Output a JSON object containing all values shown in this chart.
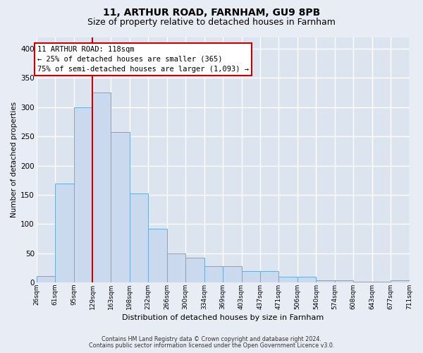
{
  "title": "11, ARTHUR ROAD, FARNHAM, GU9 8PB",
  "subtitle": "Size of property relative to detached houses in Farnham",
  "xlabel": "Distribution of detached houses by size in Farnham",
  "ylabel": "Number of detached properties",
  "bar_values": [
    11,
    170,
    300,
    325,
    258,
    153,
    92,
    50,
    43,
    28,
    28,
    20,
    20,
    10,
    10,
    4,
    4,
    2,
    2,
    4
  ],
  "bar_labels": [
    "26sqm",
    "61sqm",
    "95sqm",
    "129sqm",
    "163sqm",
    "198sqm",
    "232sqm",
    "266sqm",
    "300sqm",
    "334sqm",
    "369sqm",
    "403sqm",
    "437sqm",
    "471sqm",
    "506sqm",
    "540sqm",
    "574sqm",
    "608sqm",
    "643sqm",
    "677sqm",
    "711sqm"
  ],
  "bar_color": "#cad9ee",
  "bar_edge_color": "#6aacdc",
  "vline_color": "#cc0000",
  "vline_x": 2.5,
  "annotation_line1": "11 ARTHUR ROAD: 118sqm",
  "annotation_line2": "← 25% of detached houses are smaller (365)",
  "annotation_line3": "75% of semi-detached houses are larger (1,093) →",
  "ann_box_edge": "#cc0000",
  "ylim": [
    0,
    420
  ],
  "yticks": [
    0,
    50,
    100,
    150,
    200,
    250,
    300,
    350,
    400
  ],
  "footnote1": "Contains HM Land Registry data © Crown copyright and database right 2024.",
  "footnote2": "Contains public sector information licensed under the Open Government Licence v3.0.",
  "fig_bg": "#e8ecf4",
  "ax_bg": "#dce4f0",
  "grid_color": "#c8d0e0",
  "title_fontsize": 10,
  "subtitle_fontsize": 9
}
